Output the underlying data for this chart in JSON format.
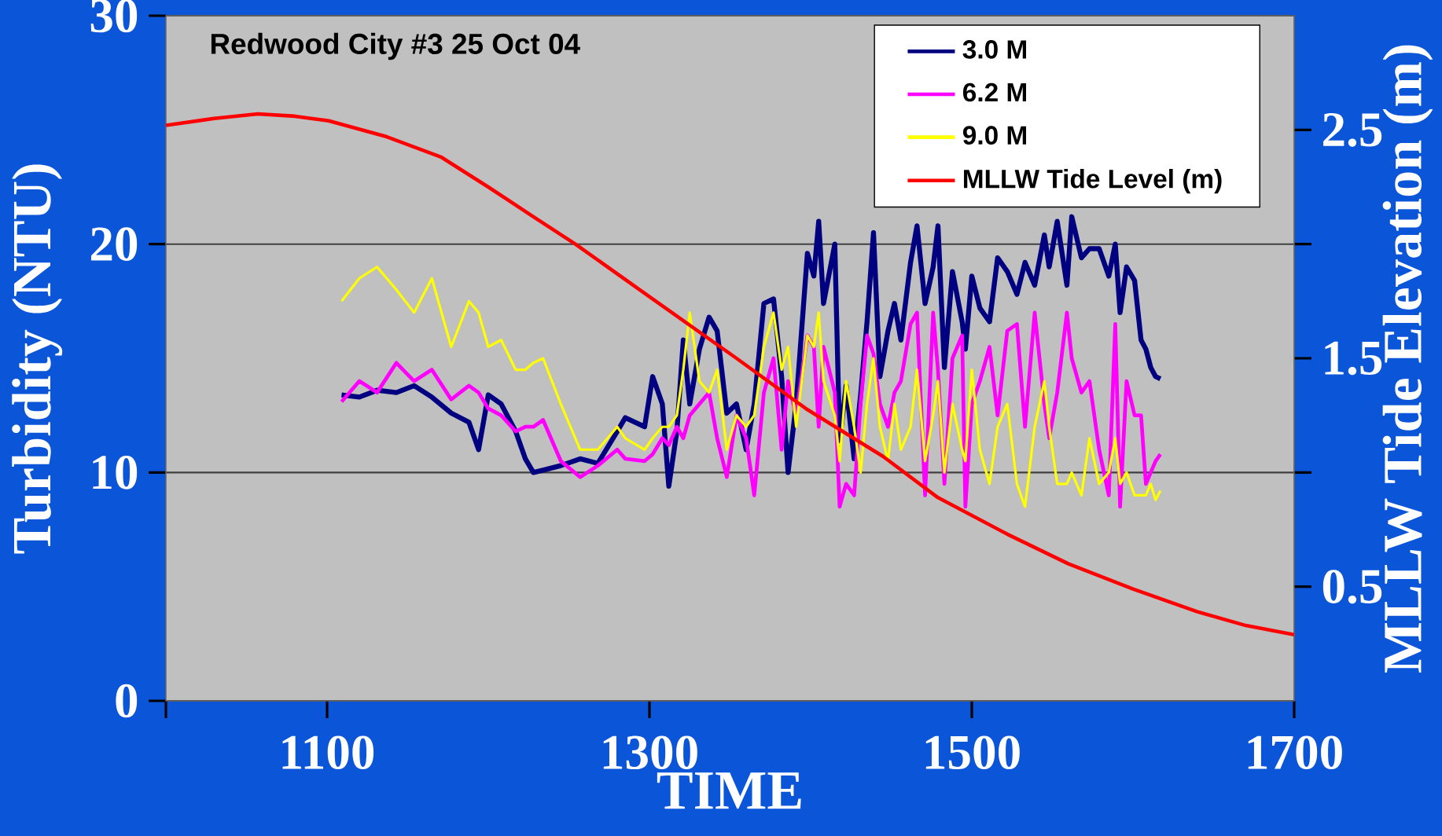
{
  "chart_data": {
    "type": "line",
    "title": "Redwood City  #3 25 Oct 04",
    "xlabel": "TIME",
    "ylabel": "Turbidity (NTU)",
    "y2label": "MLLW Tide Elevation (m)",
    "x": [
      1109,
      1120,
      1131,
      1143,
      1154,
      1165,
      1177,
      1188,
      1194,
      1200,
      1208,
      1217,
      1223,
      1228,
      1234,
      1245,
      1257,
      1268,
      1280,
      1285,
      1297,
      1302,
      1308,
      1312,
      1317,
      1321,
      1325,
      1331,
      1337,
      1342,
      1348,
      1354,
      1360,
      1365,
      1371,
      1377,
      1382,
      1386,
      1391,
      1398,
      1402,
      1405,
      1408,
      1415,
      1418,
      1422,
      1427,
      1431,
      1435,
      1439,
      1443,
      1448,
      1452,
      1456,
      1462,
      1466,
      1471,
      1476,
      1479,
      1483,
      1488,
      1494,
      1496,
      1500,
      1505,
      1511,
      1516,
      1522,
      1528,
      1533,
      1539,
      1545,
      1548,
      1553,
      1559,
      1562,
      1568,
      1573,
      1579,
      1585,
      1589,
      1592,
      1596,
      1601,
      1605,
      1608,
      1611,
      1614,
      1617
    ],
    "series": [
      {
        "name": "3.0 M",
        "color": "#000080",
        "values": [
          13.4,
          13.3,
          13.6,
          13.5,
          13.8,
          13.3,
          12.6,
          12.2,
          11.0,
          13.4,
          13.0,
          11.8,
          10.6,
          10.0,
          10.1,
          10.3,
          10.6,
          10.4,
          11.8,
          12.4,
          12.0,
          14.2,
          13.0,
          9.4,
          11.8,
          15.8,
          13.0,
          15.4,
          16.8,
          16.2,
          12.6,
          13.0,
          11.0,
          13.0,
          17.4,
          17.6,
          14.2,
          10.0,
          13.0,
          19.6,
          18.6,
          21.0,
          17.4,
          20.0,
          11.4,
          13.8,
          10.6,
          13.4,
          16.6,
          20.5,
          14.2,
          16.2,
          17.4,
          15.8,
          19.2,
          20.8,
          17.4,
          19.0,
          20.8,
          14.6,
          18.8,
          16.6,
          15.4,
          18.6,
          17.2,
          16.6,
          19.4,
          18.8,
          17.8,
          19.2,
          18.2,
          20.4,
          19.0,
          21.0,
          18.2,
          21.2,
          19.4,
          19.8,
          19.8,
          18.6,
          20.0,
          17.0,
          19.0,
          18.4,
          15.8,
          15.4,
          14.6,
          14.2,
          14.1
        ]
      },
      {
        "name": "6.2 M",
        "color": "#ff00ff",
        "values": [
          13.1,
          14.0,
          13.5,
          14.8,
          14.0,
          14.5,
          13.2,
          13.8,
          13.5,
          12.8,
          12.5,
          11.8,
          12.0,
          12.0,
          12.3,
          10.5,
          9.8,
          10.3,
          11.0,
          10.6,
          10.5,
          10.8,
          11.5,
          11.2,
          12.0,
          11.5,
          12.5,
          13.0,
          13.5,
          11.5,
          9.8,
          12.5,
          11.5,
          9.0,
          13.5,
          15.0,
          11.0,
          14.0,
          12.5,
          16.0,
          15.5,
          12.0,
          15.5,
          13.5,
          8.5,
          9.5,
          9.0,
          13.0,
          16.0,
          15.2,
          13.0,
          12.0,
          13.5,
          14.0,
          16.5,
          17.0,
          9.0,
          17.0,
          14.5,
          9.5,
          15.0,
          16.0,
          8.5,
          13.0,
          14.0,
          15.5,
          12.5,
          16.2,
          16.5,
          12.0,
          17.0,
          13.0,
          11.5,
          13.5,
          17.0,
          15.0,
          13.5,
          14.0,
          11.0,
          9.0,
          16.5,
          8.5,
          14.0,
          12.5,
          12.5,
          9.5,
          10.0,
          10.5,
          10.8
        ]
      },
      {
        "name": "9.0 M",
        "color": "#ffff00",
        "values": [
          17.5,
          18.5,
          19.0,
          18.0,
          17.0,
          18.5,
          15.5,
          17.5,
          17.0,
          15.5,
          15.8,
          14.5,
          14.5,
          14.8,
          15.0,
          13.0,
          11.0,
          11.0,
          12.0,
          11.5,
          11.0,
          11.5,
          12.0,
          12.0,
          12.5,
          14.5,
          17.0,
          14.0,
          13.5,
          14.5,
          11.0,
          12.5,
          12.0,
          12.5,
          15.5,
          17.0,
          14.5,
          15.5,
          12.0,
          16.0,
          15.5,
          17.0,
          14.0,
          12.5,
          10.5,
          14.0,
          12.0,
          10.0,
          13.0,
          15.0,
          12.0,
          10.5,
          13.0,
          11.0,
          12.0,
          14.5,
          10.5,
          12.5,
          14.0,
          10.0,
          13.0,
          11.0,
          10.5,
          14.5,
          11.0,
          9.5,
          12.0,
          13.0,
          9.5,
          8.5,
          12.0,
          14.0,
          12.0,
          9.5,
          9.5,
          10.0,
          9.0,
          11.5,
          9.5,
          10.0,
          11.5,
          9.5,
          10.0,
          9.0,
          9.0,
          9.0,
          9.5,
          8.8,
          9.2
        ]
      },
      {
        "name": "MLLW Tide Level (m)",
        "color": "#ff0000",
        "axis": "y2",
        "x": [
          1000,
          1030,
          1057,
          1080,
          1101,
          1137,
          1171,
          1200,
          1228,
          1254,
          1300,
          1354,
          1397,
          1445,
          1479,
          1522,
          1560,
          1600,
          1640,
          1670,
          1700
        ],
        "values": [
          2.52,
          2.55,
          2.57,
          2.56,
          2.54,
          2.47,
          2.38,
          2.25,
          2.12,
          2.0,
          1.77,
          1.5,
          1.28,
          1.07,
          0.89,
          0.73,
          0.6,
          0.49,
          0.39,
          0.33,
          0.29
        ]
      }
    ],
    "xlim": [
      1000,
      1700
    ],
    "xticks": [
      {
        "value": 1000,
        "label": null
      },
      1100,
      1300,
      1500,
      1700
    ],
    "ylim": [
      0,
      30
    ],
    "yticks": [
      0,
      10,
      20,
      30
    ],
    "y2lim": [
      0,
      3
    ],
    "y2ticks": [
      0.5,
      {
        "value": 1,
        "label": null
      },
      1.5,
      {
        "value": 2,
        "label": null
      },
      2.5
    ],
    "grid": "y",
    "legend": "top right"
  }
}
